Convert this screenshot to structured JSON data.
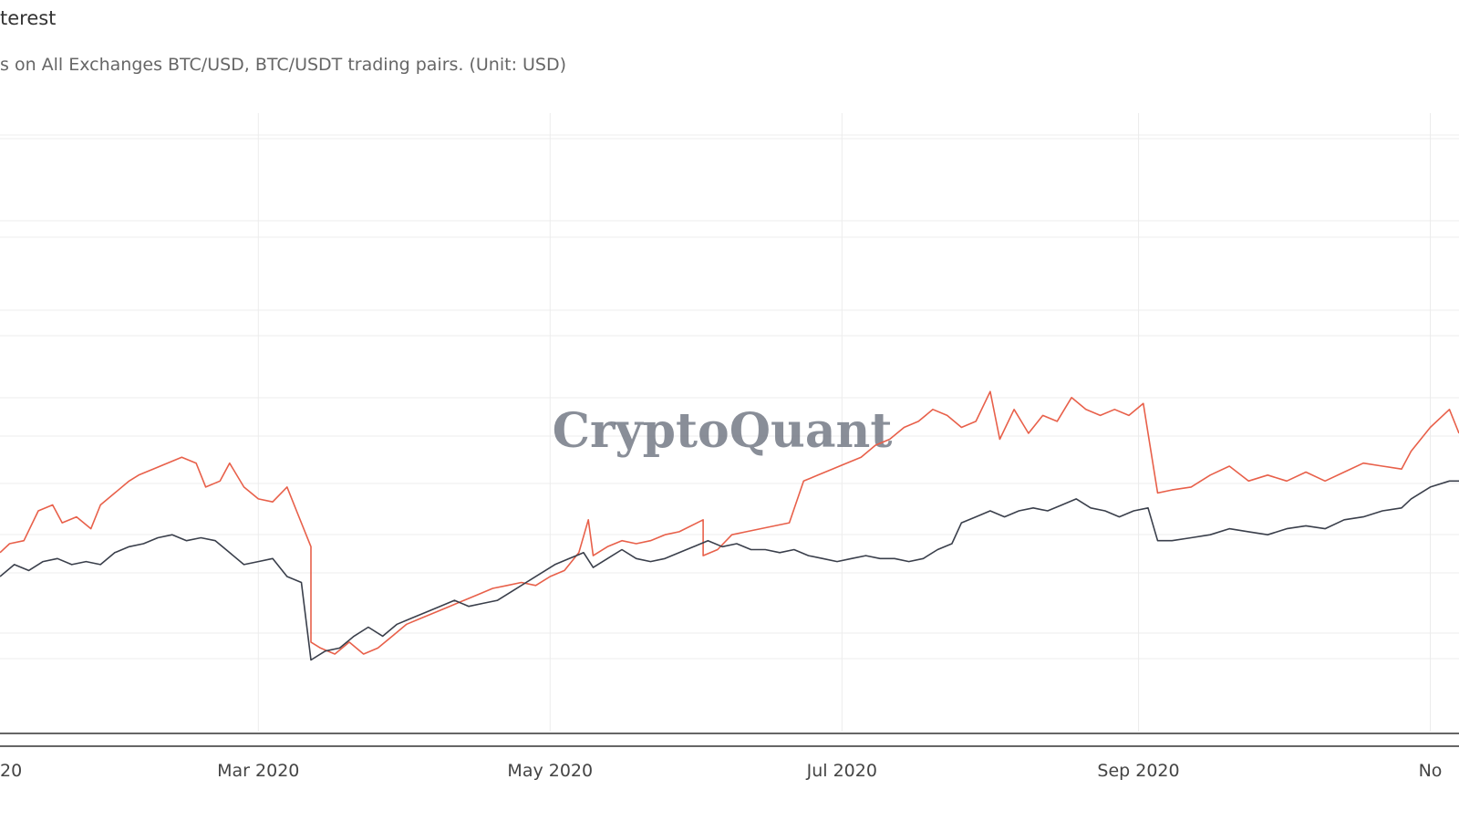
{
  "header": {
    "title": "terest",
    "subtitle": "s on All Exchanges BTC/USD, BTC/USDT trading pairs. (Unit: USD)"
  },
  "watermark": "CryptoQuant",
  "colors": {
    "series_red": "#e8604a",
    "series_dark": "#3a3f4b",
    "grid": "#ececec",
    "axis": "#333333",
    "tick_text": "#444444",
    "watermark": "#747a86"
  },
  "chart_data": {
    "type": "line",
    "x_tick_labels": [
      "20",
      "Mar 2020",
      "May 2020",
      "Jul 2020",
      "Sep 2020",
      "No"
    ],
    "x_ticks": [
      "2020-01-01",
      "2020-03-01",
      "2020-05-01",
      "2020-07-01",
      "2020-09-01",
      "2020-11-01"
    ],
    "xlim": [
      "2020-01-07",
      "2020-11-07"
    ],
    "ylim": [
      0,
      100
    ],
    "grid": true,
    "legend": "none",
    "series": [
      {
        "color": "#e8604a",
        "points": [
          [
            "2020-01-07",
            30
          ],
          [
            "2020-01-09",
            31.5
          ],
          [
            "2020-01-12",
            32
          ],
          [
            "2020-01-15",
            37
          ],
          [
            "2020-01-18",
            38
          ],
          [
            "2020-01-20",
            35
          ],
          [
            "2020-01-23",
            36
          ],
          [
            "2020-01-26",
            34
          ],
          [
            "2020-01-28",
            38
          ],
          [
            "2020-01-31",
            40
          ],
          [
            "2020-02-03",
            42
          ],
          [
            "2020-02-05",
            43
          ],
          [
            "2020-02-08",
            44
          ],
          [
            "2020-02-11",
            45
          ],
          [
            "2020-02-14",
            46
          ],
          [
            "2020-02-17",
            45
          ],
          [
            "2020-02-19",
            41
          ],
          [
            "2020-02-22",
            42
          ],
          [
            "2020-02-24",
            45
          ],
          [
            "2020-02-27",
            41
          ],
          [
            "2020-03-01",
            39
          ],
          [
            "2020-03-04",
            38.5
          ],
          [
            "2020-03-07",
            41
          ],
          [
            "2020-03-09",
            37
          ],
          [
            "2020-03-12",
            31
          ],
          [
            "2020-03-12",
            15
          ],
          [
            "2020-03-14",
            14
          ],
          [
            "2020-03-17",
            13
          ],
          [
            "2020-03-20",
            15
          ],
          [
            "2020-03-23",
            13
          ],
          [
            "2020-03-26",
            14
          ],
          [
            "2020-03-29",
            16
          ],
          [
            "2020-04-01",
            18
          ],
          [
            "2020-04-04",
            19
          ],
          [
            "2020-04-07",
            20
          ],
          [
            "2020-04-10",
            21
          ],
          [
            "2020-04-13",
            22
          ],
          [
            "2020-04-16",
            23
          ],
          [
            "2020-04-19",
            24
          ],
          [
            "2020-04-22",
            24.5
          ],
          [
            "2020-04-25",
            25
          ],
          [
            "2020-04-28",
            24.5
          ],
          [
            "2020-05-01",
            26
          ],
          [
            "2020-05-04",
            27
          ],
          [
            "2020-05-07",
            30
          ],
          [
            "2020-05-09",
            35.5
          ],
          [
            "2020-05-10",
            29.5
          ],
          [
            "2020-05-13",
            31
          ],
          [
            "2020-05-16",
            32
          ],
          [
            "2020-05-19",
            31.5
          ],
          [
            "2020-05-22",
            32
          ],
          [
            "2020-05-25",
            33
          ],
          [
            "2020-05-28",
            33.5
          ],
          [
            "2020-06-02",
            35.5
          ],
          [
            "2020-06-02",
            29.5
          ],
          [
            "2020-06-05",
            30.5
          ],
          [
            "2020-06-08",
            33
          ],
          [
            "2020-06-11",
            33.5
          ],
          [
            "2020-06-14",
            34
          ],
          [
            "2020-06-17",
            34.5
          ],
          [
            "2020-06-20",
            35
          ],
          [
            "2020-06-23",
            42
          ],
          [
            "2020-06-26",
            43
          ],
          [
            "2020-06-29",
            44
          ],
          [
            "2020-07-02",
            45
          ],
          [
            "2020-07-05",
            46
          ],
          [
            "2020-07-08",
            48
          ],
          [
            "2020-07-11",
            49
          ],
          [
            "2020-07-14",
            51
          ],
          [
            "2020-07-17",
            52
          ],
          [
            "2020-07-20",
            54
          ],
          [
            "2020-07-23",
            53
          ],
          [
            "2020-07-26",
            51
          ],
          [
            "2020-07-29",
            52
          ],
          [
            "2020-08-01",
            57
          ],
          [
            "2020-08-03",
            49
          ],
          [
            "2020-08-06",
            54
          ],
          [
            "2020-08-09",
            50
          ],
          [
            "2020-08-12",
            53
          ],
          [
            "2020-08-15",
            52
          ],
          [
            "2020-08-18",
            56
          ],
          [
            "2020-08-21",
            54
          ],
          [
            "2020-08-24",
            53
          ],
          [
            "2020-08-27",
            54
          ],
          [
            "2020-08-30",
            53
          ],
          [
            "2020-09-02",
            55
          ],
          [
            "2020-09-03",
            50
          ],
          [
            "2020-09-05",
            40
          ],
          [
            "2020-09-08",
            40.5
          ],
          [
            "2020-09-12",
            41
          ],
          [
            "2020-09-16",
            43
          ],
          [
            "2020-09-20",
            44.5
          ],
          [
            "2020-09-24",
            42
          ],
          [
            "2020-09-28",
            43
          ],
          [
            "2020-10-02",
            42
          ],
          [
            "2020-10-06",
            43.5
          ],
          [
            "2020-10-10",
            42
          ],
          [
            "2020-10-14",
            43.5
          ],
          [
            "2020-10-18",
            45
          ],
          [
            "2020-10-22",
            44.5
          ],
          [
            "2020-10-26",
            44
          ],
          [
            "2020-10-28",
            47
          ],
          [
            "2020-11-01",
            51
          ],
          [
            "2020-11-05",
            54
          ],
          [
            "2020-11-07",
            50
          ]
        ]
      },
      {
        "color": "#3a3f4b",
        "points": [
          [
            "2020-01-07",
            26
          ],
          [
            "2020-01-10",
            28
          ],
          [
            "2020-01-13",
            27
          ],
          [
            "2020-01-16",
            28.5
          ],
          [
            "2020-01-19",
            29
          ],
          [
            "2020-01-22",
            28
          ],
          [
            "2020-01-25",
            28.5
          ],
          [
            "2020-01-28",
            28
          ],
          [
            "2020-01-31",
            30
          ],
          [
            "2020-02-03",
            31
          ],
          [
            "2020-02-06",
            31.5
          ],
          [
            "2020-02-09",
            32.5
          ],
          [
            "2020-02-12",
            33
          ],
          [
            "2020-02-15",
            32
          ],
          [
            "2020-02-18",
            32.5
          ],
          [
            "2020-02-21",
            32
          ],
          [
            "2020-02-24",
            30
          ],
          [
            "2020-02-27",
            28
          ],
          [
            "2020-03-01",
            28.5
          ],
          [
            "2020-03-04",
            29
          ],
          [
            "2020-03-07",
            26
          ],
          [
            "2020-03-10",
            25
          ],
          [
            "2020-03-12",
            12
          ],
          [
            "2020-03-15",
            13.5
          ],
          [
            "2020-03-18",
            14
          ],
          [
            "2020-03-21",
            16
          ],
          [
            "2020-03-24",
            17.5
          ],
          [
            "2020-03-27",
            16
          ],
          [
            "2020-03-30",
            18
          ],
          [
            "2020-04-02",
            19
          ],
          [
            "2020-04-05",
            20
          ],
          [
            "2020-04-08",
            21
          ],
          [
            "2020-04-11",
            22
          ],
          [
            "2020-04-14",
            21
          ],
          [
            "2020-04-17",
            21.5
          ],
          [
            "2020-04-20",
            22
          ],
          [
            "2020-04-23",
            23.5
          ],
          [
            "2020-04-26",
            25
          ],
          [
            "2020-04-29",
            26.5
          ],
          [
            "2020-05-02",
            28
          ],
          [
            "2020-05-05",
            29
          ],
          [
            "2020-05-08",
            30
          ],
          [
            "2020-05-10",
            27.5
          ],
          [
            "2020-05-13",
            29
          ],
          [
            "2020-05-16",
            30.5
          ],
          [
            "2020-05-19",
            29
          ],
          [
            "2020-05-22",
            28.5
          ],
          [
            "2020-05-25",
            29
          ],
          [
            "2020-05-28",
            30
          ],
          [
            "2020-05-31",
            31
          ],
          [
            "2020-06-03",
            32
          ],
          [
            "2020-06-06",
            31
          ],
          [
            "2020-06-09",
            31.5
          ],
          [
            "2020-06-12",
            30.5
          ],
          [
            "2020-06-15",
            30.5
          ],
          [
            "2020-06-18",
            30
          ],
          [
            "2020-06-21",
            30.5
          ],
          [
            "2020-06-24",
            29.5
          ],
          [
            "2020-06-27",
            29
          ],
          [
            "2020-06-30",
            28.5
          ],
          [
            "2020-07-03",
            29
          ],
          [
            "2020-07-06",
            29.5
          ],
          [
            "2020-07-09",
            29
          ],
          [
            "2020-07-12",
            29
          ],
          [
            "2020-07-15",
            28.5
          ],
          [
            "2020-07-18",
            29
          ],
          [
            "2020-07-21",
            30.5
          ],
          [
            "2020-07-24",
            31.5
          ],
          [
            "2020-07-26",
            35
          ],
          [
            "2020-07-29",
            36
          ],
          [
            "2020-08-01",
            37
          ],
          [
            "2020-08-04",
            36
          ],
          [
            "2020-08-07",
            37
          ],
          [
            "2020-08-10",
            37.5
          ],
          [
            "2020-08-13",
            37
          ],
          [
            "2020-08-16",
            38
          ],
          [
            "2020-08-19",
            39
          ],
          [
            "2020-08-22",
            37.5
          ],
          [
            "2020-08-25",
            37
          ],
          [
            "2020-08-28",
            36
          ],
          [
            "2020-08-31",
            37
          ],
          [
            "2020-09-03",
            37.5
          ],
          [
            "2020-09-05",
            32
          ],
          [
            "2020-09-08",
            32
          ],
          [
            "2020-09-12",
            32.5
          ],
          [
            "2020-09-16",
            33
          ],
          [
            "2020-09-20",
            34
          ],
          [
            "2020-09-24",
            33.5
          ],
          [
            "2020-09-28",
            33
          ],
          [
            "2020-10-02",
            34
          ],
          [
            "2020-10-06",
            34.5
          ],
          [
            "2020-10-10",
            34
          ],
          [
            "2020-10-14",
            35.5
          ],
          [
            "2020-10-18",
            36
          ],
          [
            "2020-10-22",
            37
          ],
          [
            "2020-10-26",
            37.5
          ],
          [
            "2020-10-28",
            39
          ],
          [
            "2020-11-01",
            41
          ],
          [
            "2020-11-05",
            42
          ],
          [
            "2020-11-07",
            42
          ]
        ]
      }
    ]
  }
}
